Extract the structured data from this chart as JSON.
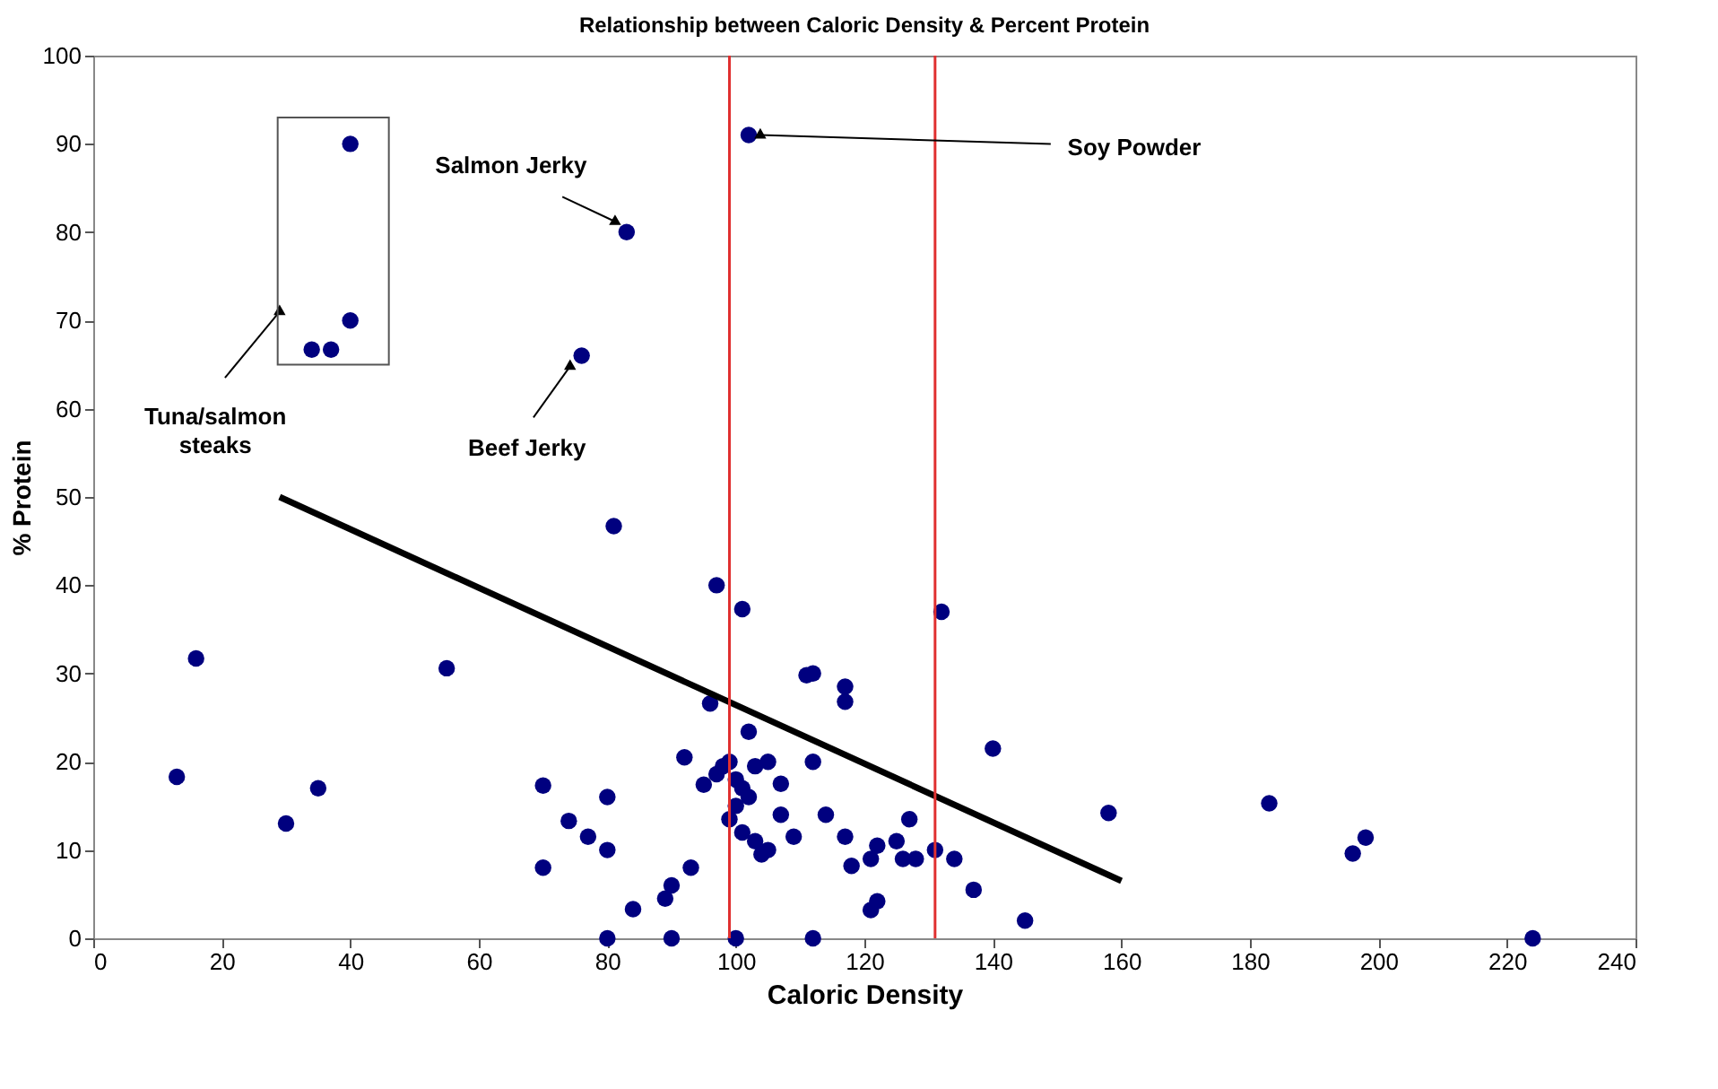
{
  "chart_data": {
    "type": "scatter",
    "title": "Relationship between Caloric Density & Percent Protein",
    "xlabel": "Caloric Density",
    "ylabel": "% Protein",
    "xlim": [
      0,
      240
    ],
    "xticks": [
      0,
      20,
      40,
      60,
      80,
      100,
      120,
      140,
      160,
      180,
      200,
      220,
      240
    ],
    "ylim": [
      0,
      100
    ],
    "yticks": [
      0,
      10,
      20,
      30,
      40,
      50,
      60,
      70,
      80,
      90,
      100
    ],
    "grid": false,
    "marker": "circle",
    "series": [
      {
        "color": "#00007f",
        "x": [
          13,
          16,
          30,
          35,
          55,
          34,
          37,
          40,
          40,
          83,
          76,
          81,
          102,
          70,
          70,
          74,
          77,
          80,
          80,
          80,
          84,
          89,
          90,
          90,
          93,
          92,
          97,
          101,
          96,
          102,
          95,
          97,
          98,
          99,
          100,
          101,
          102,
          103,
          100,
          99,
          101,
          103,
          104,
          105,
          105,
          107,
          107,
          109,
          100,
          112,
          111,
          112,
          117,
          117,
          112,
          114,
          117,
          118,
          121,
          122,
          121,
          122,
          125,
          126,
          127,
          128,
          131,
          134,
          137,
          145,
          132,
          140,
          158,
          183,
          196,
          198,
          224
        ],
        "values": [
          18.3,
          31.7,
          13,
          17,
          30.6,
          66.7,
          66.7,
          70,
          90,
          80,
          66,
          46.7,
          91,
          17.3,
          8,
          13.3,
          11.5,
          16,
          10,
          0,
          3.3,
          4.5,
          6,
          0,
          8,
          20.5,
          40,
          37.3,
          26.6,
          23.4,
          17.4,
          18.6,
          19.5,
          20,
          18,
          17,
          16,
          19.5,
          15,
          13.5,
          12,
          11,
          9.5,
          10,
          20,
          17.5,
          14,
          11.5,
          0,
          0,
          29.8,
          30,
          28.5,
          26.8,
          20,
          14,
          11.5,
          8.2,
          9,
          10.5,
          3.2,
          4.2,
          11,
          9,
          13.5,
          9,
          10,
          9,
          5.5,
          2,
          37,
          21.5,
          14.2,
          15.3,
          9.6,
          11.4,
          0
        ]
      },
      {
        "type": "line",
        "color": "#000000",
        "line_style": "solid",
        "marker": "none",
        "x": [
          29,
          160
        ],
        "values": [
          50,
          6.5
        ]
      }
    ],
    "ref_lines": [
      {
        "axis": "x",
        "value": 99,
        "color": "#e03030",
        "line_style": "solid"
      },
      {
        "axis": "x",
        "value": 131,
        "color": "#e03030",
        "line_style": "solid"
      }
    ],
    "annotations": [
      {
        "text": "Salmon Jerky",
        "x": 83,
        "y": 80
      },
      {
        "text": "Soy Powder",
        "x": 102,
        "y": 91
      },
      {
        "text": "Beef Jerky",
        "x": 76,
        "y": 66
      },
      {
        "text": "Tuna/salmon steaks",
        "x": 29,
        "y": 71
      }
    ]
  }
}
